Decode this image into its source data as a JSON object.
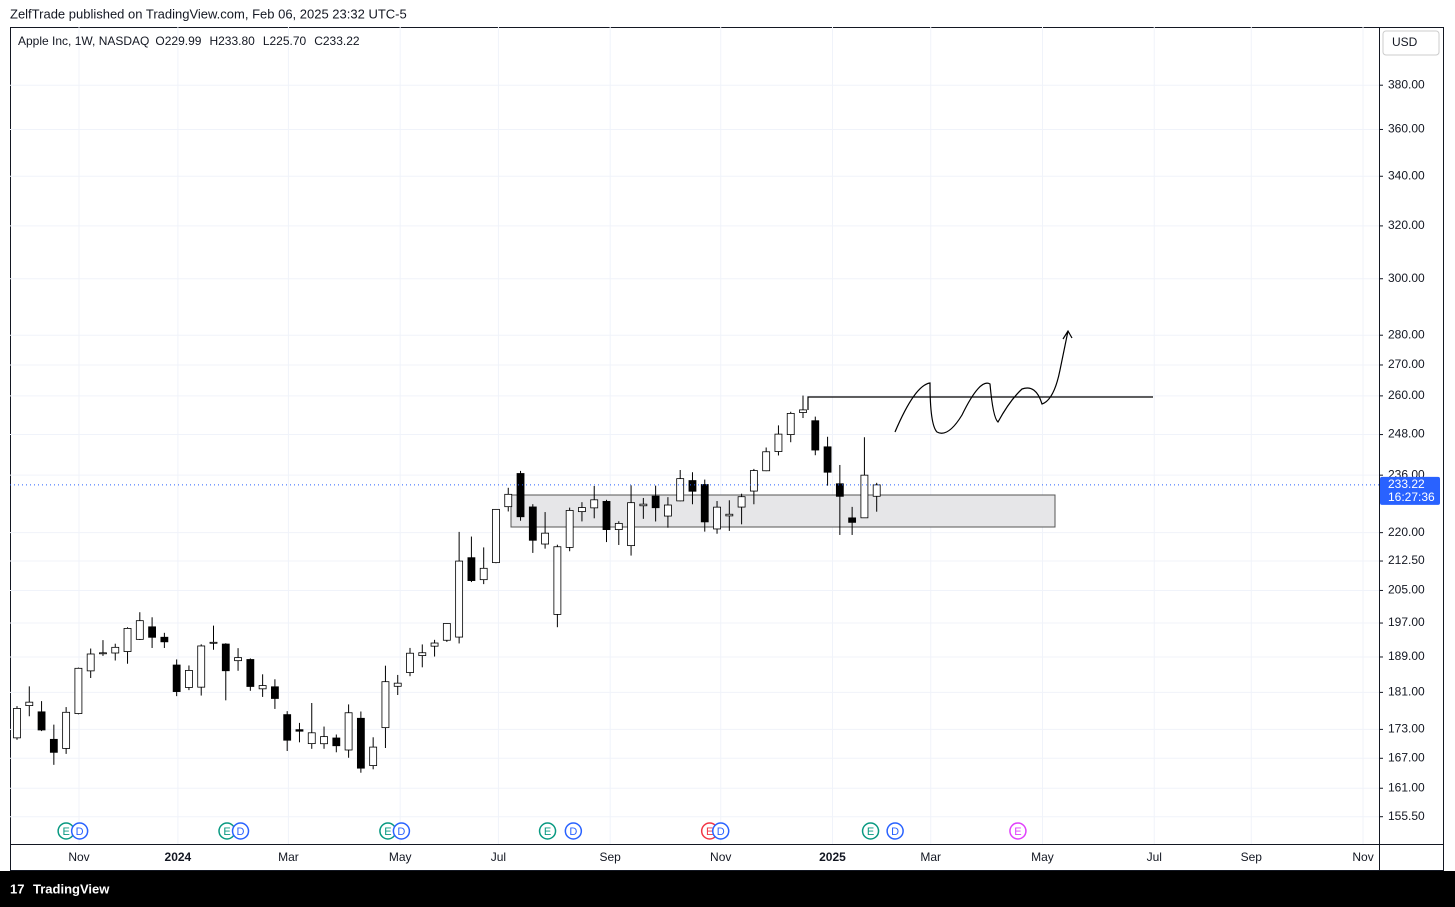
{
  "published": "ZelfTrade published on TradingView.com, Feb 06, 2025 23:32 UTC-5",
  "footer": "TradingView",
  "chart_data": {
    "type": "candlestick",
    "title": "Apple Inc, 1W, NASDAQ",
    "legend_ohlc": [
      "O229.99",
      "H233.80",
      "L225.70",
      "C233.22"
    ],
    "currency": "USD",
    "log_scale": true,
    "grid": true,
    "up_color": "#ffffff",
    "down_color": "#000000",
    "wick_color": "#000000",
    "open": [
      171.22,
      178.1,
      176.75,
      170.91,
      169.02,
      176.38,
      185.82,
      189.89,
      189.92,
      190.26,
      193.11,
      196.09,
      193.61,
      187.15,
      182.09,
      182.16,
      192.3,
      192.01,
      188.15,
      188.42,
      181.79,
      182.24,
      176.15,
      172.94,
      170.02,
      170.0,
      171.19,
      168.7,
      175.36,
      165.52,
      173.37,
      182.35,
      185.44,
      189.33,
      191.51,
      192.9,
      193.65,
      213.37,
      207.72,
      212.09,
      227.09,
      236.48,
      227.01,
      216.96,
      199.09,
      216.07,
      225.72,
      226.76,
      228.55,
      220.82,
      216.54,
      227.34,
      230.04,
      224.5,
      228.7,
      234.45,
      233.32,
      220.99,
      224.55,
      226.98,
      231.46,
      237.27,
      242.91,
      247.99,
      254.77,
      252.23,
      244.31,
      233.53,
      224.0,
      224.02,
      229.99
    ],
    "high": [
      177.99,
      182.34,
      179.08,
      174.01,
      177.78,
      186.57,
      190.96,
      192.93,
      192.09,
      195.99,
      199.62,
      198.39,
      194.66,
      188.44,
      187.05,
      191.95,
      196.38,
      192.2,
      191.05,
      188.67,
      185.04,
      183.92,
      176.9,
      174.38,
      178.67,
      173.6,
      171.92,
      178.36,
      176.82,
      171.34,
      187.0,
      184.9,
      191.1,
      191.92,
      193.0,
      196.94,
      220.2,
      218.95,
      216.07,
      226.45,
      232.39,
      237.23,
      227.78,
      225.6,
      216.78,
      226.83,
      228.34,
      232.92,
      229.0,
      223.09,
      233.09,
      229.52,
      233.0,
      229.75,
      237.49,
      236.85,
      234.73,
      228.66,
      228.87,
      230.72,
      237.81,
      244.11,
      250.8,
      255.0,
      260.1,
      253.5,
      247.33,
      238.96,
      227.03,
      247.19,
      233.8
    ],
    "low": [
      170.82,
      175.8,
      172.64,
      165.67,
      167.9,
      176.21,
      184.21,
      189.25,
      188.19,
      187.45,
      192.97,
      191.09,
      191.09,
      180.17,
      181.5,
      180.3,
      190.67,
      179.25,
      185.84,
      181.35,
      180.0,
      177.38,
      168.49,
      170.29,
      168.94,
      168.95,
      168.23,
      167.11,
      164.08,
      164.77,
      169.11,
      180.42,
      184.62,
      186.63,
      189.1,
      192.52,
      192.15,
      207.11,
      206.59,
      211.92,
      225.77,
      223.22,
      214.62,
      215.74,
      196.0,
      215.06,
      223.04,
      223.89,
      217.48,
      216.71,
      213.92,
      223.74,
      223.02,
      221.33,
      228.6,
      227.76,
      220.27,
      219.71,
      220.47,
      222.25,
      227.76,
      237.16,
      241.75,
      245.69,
      253.06,
      241.82,
      233.0,
      219.38,
      219.38,
      223.98,
      225.7
    ],
    "close": [
      177.49,
      178.85,
      172.88,
      168.22,
      176.65,
      186.4,
      189.69,
      189.97,
      191.24,
      195.71,
      197.57,
      193.6,
      192.53,
      181.18,
      185.92,
      191.56,
      192.42,
      185.85,
      188.85,
      182.31,
      182.52,
      179.66,
      170.73,
      172.62,
      172.28,
      171.48,
      169.58,
      176.55,
      165.0,
      169.3,
      183.38,
      183.05,
      189.87,
      189.98,
      192.25,
      196.89,
      212.49,
      207.49,
      210.62,
      226.34,
      230.54,
      224.31,
      217.96,
      219.86,
      216.24,
      226.05,
      226.84,
      229.0,
      220.82,
      222.5,
      228.2,
      227.79,
      226.8,
      227.55,
      235.0,
      231.41,
      222.91,
      226.96,
      225.0,
      229.87,
      237.33,
      242.84,
      248.13,
      254.49,
      255.59,
      243.36,
      236.85,
      229.98,
      222.78,
      236.0,
      233.22
    ],
    "last_price": 233.22,
    "countdown": "16:27:36",
    "ylim": [
      150.4,
      408
    ],
    "yticks": [
      {
        "value": 155.5,
        "label": "155.50"
      },
      {
        "value": 161,
        "label": "161.00"
      },
      {
        "value": 167,
        "label": "167.00"
      },
      {
        "value": 173,
        "label": "173.00"
      },
      {
        "value": 181,
        "label": "181.00"
      },
      {
        "value": 189,
        "label": "189.00"
      },
      {
        "value": 197,
        "label": "197.00"
      },
      {
        "value": 205,
        "label": "205.00"
      },
      {
        "value": 212.5,
        "label": "212.50"
      },
      {
        "value": 220,
        "label": "220.00"
      },
      {
        "value": 236,
        "label": "236.00"
      },
      {
        "value": 248,
        "label": "248.00"
      },
      {
        "value": 260,
        "label": "260.00"
      },
      {
        "value": 270,
        "label": "270.00"
      },
      {
        "value": 280,
        "label": "280.00"
      },
      {
        "value": 300,
        "label": "300.00"
      },
      {
        "value": 320,
        "label": "320.00"
      },
      {
        "value": 340,
        "label": "340.00"
      },
      {
        "value": 360,
        "label": "360.00"
      },
      {
        "value": 380,
        "label": "380.00"
      }
    ],
    "xlim": [
      -0.57,
      110.9
    ],
    "xticks": [
      {
        "value": 5.05,
        "label": "Nov"
      },
      {
        "value": 13.1,
        "label": "2024"
      },
      {
        "value": 22.1,
        "label": "Mar"
      },
      {
        "value": 31.2,
        "label": "May"
      },
      {
        "value": 39.2,
        "label": "Jul"
      },
      {
        "value": 48.3,
        "label": "Sep"
      },
      {
        "value": 57.3,
        "label": "Nov"
      },
      {
        "value": 66.4,
        "label": "2025"
      },
      {
        "value": 74.4,
        "label": "Mar"
      },
      {
        "value": 83.5,
        "label": "May"
      },
      {
        "value": 92.6,
        "label": "Jul"
      },
      {
        "value": 100.5,
        "label": "Sep"
      },
      {
        "value": 109.6,
        "label": "Nov"
      }
    ],
    "events": [
      {
        "x": 4.0,
        "label": "E",
        "color": "#089981"
      },
      {
        "x": 5.1,
        "label": "D",
        "color": "#2962ff"
      },
      {
        "x": 17.1,
        "label": "E",
        "color": "#089981"
      },
      {
        "x": 18.2,
        "label": "D",
        "color": "#2962ff"
      },
      {
        "x": 30.2,
        "label": "E",
        "color": "#089981"
      },
      {
        "x": 31.3,
        "label": "D",
        "color": "#2962ff"
      },
      {
        "x": 43.2,
        "label": "E",
        "color": "#089981"
      },
      {
        "x": 45.3,
        "label": "D",
        "color": "#2962ff"
      },
      {
        "x": 56.4,
        "label": "E",
        "color": "#f23645"
      },
      {
        "x": 57.3,
        "label": "D",
        "color": "#2962ff"
      },
      {
        "x": 69.5,
        "label": "E",
        "color": "#089981"
      },
      {
        "x": 71.5,
        "label": "D",
        "color": "#2962ff"
      },
      {
        "x": 81.5,
        "label": "E",
        "color": "#e040fb"
      }
    ]
  }
}
